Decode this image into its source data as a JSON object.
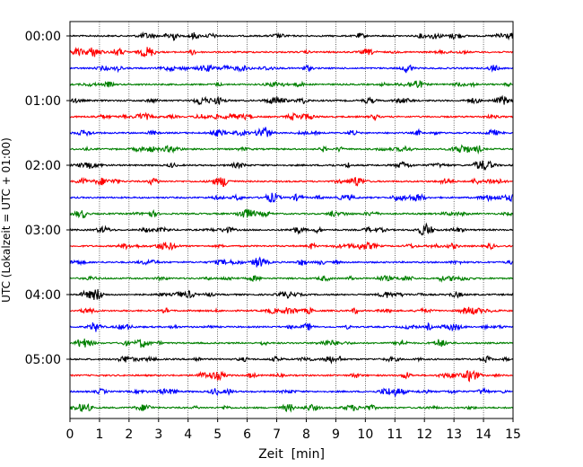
{
  "chart_data": {
    "type": "line",
    "title": "",
    "xlabel": "Zeit  [min]",
    "ylabel": "UTC (Lokalzeit = UTC + 01:00)",
    "xlim": [
      0,
      15
    ],
    "xticks": [
      0,
      1,
      2,
      3,
      4,
      5,
      6,
      7,
      8,
      9,
      10,
      11,
      12,
      13,
      14,
      15
    ],
    "xtick_labels": [
      "0",
      "1",
      "2",
      "3",
      "4",
      "5",
      "6",
      "7",
      "8",
      "9",
      "10",
      "11",
      "12",
      "13",
      "14",
      "15"
    ],
    "y_tick_labels": [
      "00:00",
      "01:00",
      "02:00",
      "03:00",
      "04:00",
      "05:00"
    ],
    "traces_per_hour": 4,
    "trace_minutes": 15,
    "trace_count": 24,
    "grid": "vertical dotted",
    "trace_colors": [
      "#000000",
      "#ff0000",
      "#0000ff",
      "#008000"
    ],
    "legend": "none"
  }
}
